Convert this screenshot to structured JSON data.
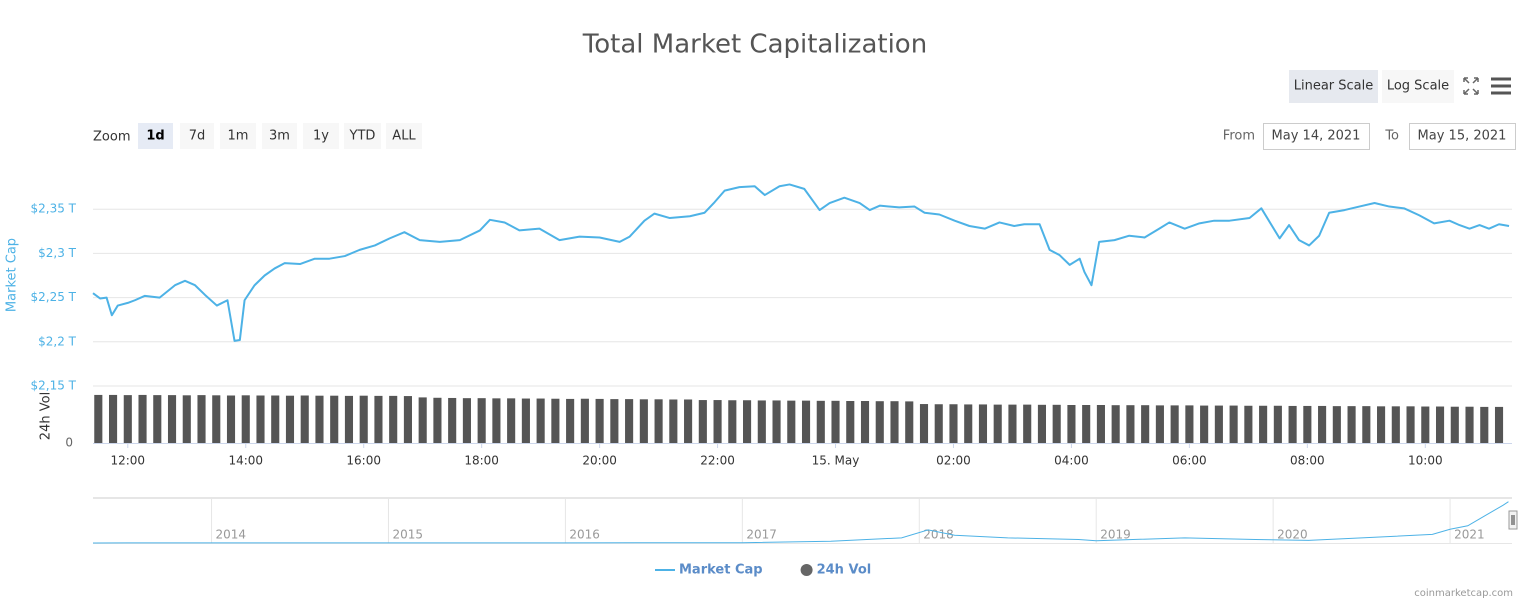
{
  "chart_data": [
    {
      "type": "line",
      "title": "Total Market Capitalization",
      "ylabel": "Market Cap",
      "y2label": "24h Vol",
      "xlim": [
        11.41,
        35.47
      ],
      "xticks": [
        {
          "value": 12,
          "label": "12:00"
        },
        {
          "value": 14,
          "label": "14:00"
        },
        {
          "value": 16,
          "label": "16:00"
        },
        {
          "value": 18,
          "label": "18:00"
        },
        {
          "value": 20,
          "label": "20:00"
        },
        {
          "value": 22,
          "label": "22:00"
        },
        {
          "value": 24,
          "label": "15. May"
        },
        {
          "value": 26,
          "label": "02:00"
        },
        {
          "value": 28,
          "label": "04:00"
        },
        {
          "value": 30,
          "label": "06:00"
        },
        {
          "value": 32,
          "label": "08:00"
        },
        {
          "value": 34,
          "label": "10:00"
        }
      ],
      "ylim": [
        2.15,
        2.4
      ],
      "yticks": [
        {
          "value": 2.15,
          "label": "$2,15 T"
        },
        {
          "value": 2.2,
          "label": "$2,2 T"
        },
        {
          "value": 2.25,
          "label": "$2,25 T"
        },
        {
          "value": 2.3,
          "label": "$2,3 T"
        },
        {
          "value": 2.35,
          "label": "$2,35 T"
        }
      ],
      "y2lim": [
        0,
        300
      ],
      "y2ticks": [
        0
      ],
      "grid": true,
      "legend": "bottom",
      "series": [
        {
          "name": "Market Cap",
          "type": "line",
          "color": "#4db2e6",
          "x": [
            11.41,
            11.53,
            11.64,
            11.73,
            11.83,
            12.0,
            12.12,
            12.29,
            12.54,
            12.8,
            12.97,
            13.14,
            13.31,
            13.51,
            13.69,
            13.81,
            13.9,
            13.98,
            14.15,
            14.32,
            14.49,
            14.66,
            14.92,
            15.17,
            15.42,
            15.68,
            15.93,
            16.19,
            16.44,
            16.69,
            16.95,
            17.29,
            17.63,
            17.97,
            18.14,
            18.39,
            18.64,
            18.98,
            19.32,
            19.66,
            20.0,
            20.34,
            20.51,
            20.76,
            20.93,
            21.19,
            21.53,
            21.78,
            21.95,
            22.12,
            22.37,
            22.63,
            22.8,
            23.05,
            23.22,
            23.47,
            23.73,
            23.9,
            24.15,
            24.41,
            24.58,
            24.75,
            25.08,
            25.34,
            25.51,
            25.76,
            26.02,
            26.27,
            26.53,
            26.78,
            27.03,
            27.2,
            27.46,
            27.63,
            27.8,
            27.97,
            28.14,
            28.22,
            28.34,
            28.47,
            28.73,
            28.98,
            29.24,
            29.49,
            29.66,
            29.92,
            30.17,
            30.42,
            30.68,
            31.02,
            31.22,
            31.53,
            31.69,
            31.86,
            32.03,
            32.2,
            32.37,
            32.63,
            32.88,
            33.14,
            33.39,
            33.64,
            33.9,
            34.15,
            34.41,
            34.58,
            34.75,
            34.92,
            35.08,
            35.25,
            35.42
          ],
          "values": [
            2.255,
            2.249,
            2.25,
            2.23,
            2.241,
            2.244,
            2.247,
            2.252,
            2.25,
            2.264,
            2.269,
            2.264,
            2.253,
            2.241,
            2.247,
            2.201,
            2.202,
            2.247,
            2.264,
            2.275,
            2.283,
            2.289,
            2.288,
            2.294,
            2.294,
            2.297,
            2.304,
            2.309,
            2.317,
            2.324,
            2.315,
            2.313,
            2.315,
            2.326,
            2.338,
            2.335,
            2.326,
            2.328,
            2.315,
            2.319,
            2.318,
            2.313,
            2.319,
            2.337,
            2.345,
            2.34,
            2.342,
            2.346,
            2.358,
            2.371,
            2.375,
            2.376,
            2.366,
            2.376,
            2.378,
            2.373,
            2.349,
            2.357,
            2.363,
            2.357,
            2.349,
            2.354,
            2.352,
            2.353,
            2.346,
            2.344,
            2.337,
            2.331,
            2.328,
            2.335,
            2.331,
            2.333,
            2.333,
            2.304,
            2.298,
            2.287,
            2.294,
            2.279,
            2.264,
            2.313,
            2.315,
            2.32,
            2.318,
            2.328,
            2.335,
            2.328,
            2.334,
            2.337,
            2.337,
            2.34,
            2.351,
            2.317,
            2.332,
            2.315,
            2.309,
            2.32,
            2.346,
            2.349,
            2.353,
            2.357,
            2.353,
            2.351,
            2.343,
            2.334,
            2.337,
            2.332,
            2.328,
            2.332,
            2.328,
            2.333,
            2.331
          ]
        },
        {
          "name": "24h Vol",
          "type": "bar",
          "axis": "y2",
          "color": "#555555",
          "x": [
            11.5,
            11.75,
            12,
            12.25,
            12.5,
            12.75,
            13,
            13.25,
            13.5,
            13.75,
            14,
            14.25,
            14.5,
            14.75,
            15,
            15.25,
            15.5,
            15.75,
            16,
            16.25,
            16.5,
            16.75,
            17,
            17.25,
            17.5,
            17.75,
            18,
            18.25,
            18.5,
            18.75,
            19,
            19.25,
            19.5,
            19.75,
            20,
            20.25,
            20.5,
            20.75,
            21,
            21.25,
            21.5,
            21.75,
            22,
            22.25,
            22.5,
            22.75,
            23,
            23.25,
            23.5,
            23.75,
            24,
            24.25,
            24.5,
            24.75,
            25,
            25.25,
            25.5,
            25.75,
            26,
            26.25,
            26.5,
            26.75,
            27,
            27.25,
            27.5,
            27.75,
            28,
            28.25,
            28.5,
            28.75,
            29,
            29.25,
            29.5,
            29.75,
            30,
            30.25,
            30.5,
            30.75,
            31,
            31.25,
            31.5,
            31.75,
            32,
            32.25,
            32.5,
            32.75,
            33,
            33.25,
            33.5,
            33.75,
            34,
            34.25,
            34.5,
            34.75,
            35,
            35.25
          ],
          "values": [
            253,
            253,
            252,
            253,
            252,
            252,
            251,
            252,
            251,
            250,
            251,
            250,
            250,
            249,
            250,
            249,
            249,
            248,
            249,
            248,
            248,
            247,
            240,
            238,
            237,
            236,
            236,
            235,
            235,
            234,
            234,
            233,
            232,
            233,
            232,
            231,
            231,
            230,
            230,
            229,
            229,
            226,
            226,
            225,
            225,
            224,
            224,
            223,
            223,
            222,
            222,
            221,
            221,
            220,
            220,
            219,
            205,
            204,
            204,
            203,
            203,
            202,
            202,
            202,
            201,
            201,
            200,
            200,
            200,
            199,
            199,
            199,
            198,
            198,
            198,
            197,
            197,
            197,
            196,
            196,
            196,
            195,
            195,
            195,
            194,
            194,
            194,
            193,
            193,
            193,
            192,
            192,
            191,
            191,
            190,
            190
          ]
        }
      ]
    },
    {
      "type": "line",
      "xlim": [
        2013.33,
        2021.35
      ],
      "xticks": [
        2014,
        2015,
        2016,
        2017,
        2018,
        2019,
        2020,
        2021
      ],
      "ylim": [
        0,
        2.5
      ],
      "series": [
        {
          "color": "#4db2e6",
          "x": [
            2013.33,
            2014.0,
            2015.0,
            2016.0,
            2017.0,
            2017.5,
            2017.9,
            2018.05,
            2018.2,
            2018.5,
            2018.9,
            2019.0,
            2019.5,
            2019.9,
            2020.2,
            2020.5,
            2020.9,
            2021.0,
            2021.1,
            2021.2,
            2021.3,
            2021.33
          ],
          "values": [
            0.002,
            0.01,
            0.005,
            0.007,
            0.018,
            0.1,
            0.3,
            0.76,
            0.45,
            0.3,
            0.2,
            0.13,
            0.3,
            0.2,
            0.15,
            0.3,
            0.5,
            0.8,
            1.0,
            1.6,
            2.2,
            2.4
          ]
        }
      ]
    }
  ],
  "controls": {
    "zoom_label": "Zoom",
    "zoom_buttons": [
      "1d",
      "7d",
      "1m",
      "3m",
      "1y",
      "YTD",
      "ALL"
    ],
    "zoom_selected": 0,
    "from_label": "From",
    "from": "May 14, 2021",
    "to_label": "To",
    "to": "May 15, 2021",
    "scale_buttons": [
      "Linear Scale",
      "Log Scale"
    ],
    "scale_selected": 0
  },
  "credits": "coinmarketcap.com"
}
